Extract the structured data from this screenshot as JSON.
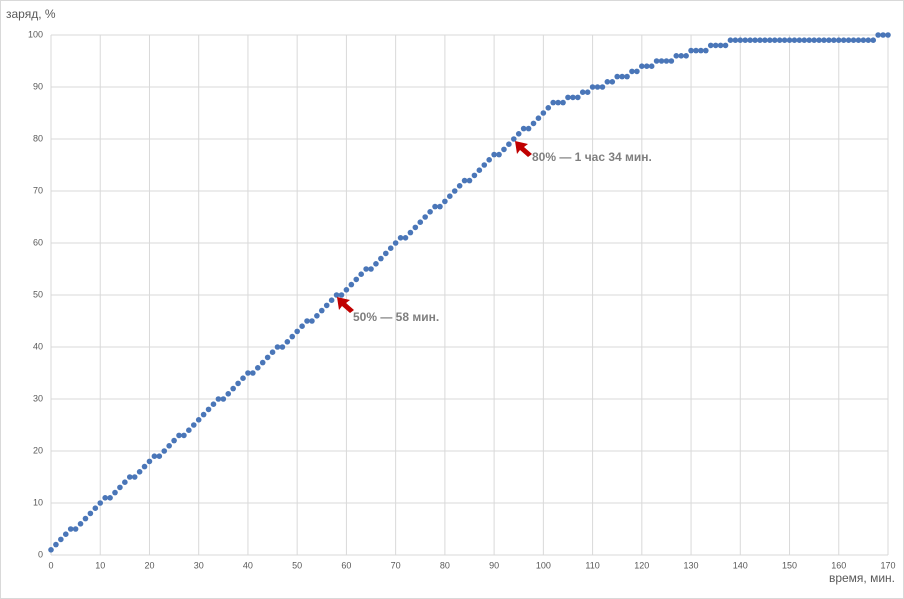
{
  "chart_data": {
    "type": "scatter",
    "y_label": "заряд, %",
    "x_label": "время, мин.",
    "x": [
      0,
      1,
      2,
      3,
      4,
      5,
      6,
      7,
      8,
      9,
      10,
      11,
      12,
      13,
      14,
      15,
      16,
      17,
      18,
      19,
      20,
      21,
      22,
      23,
      24,
      25,
      26,
      27,
      28,
      29,
      30,
      31,
      32,
      33,
      34,
      35,
      36,
      37,
      38,
      39,
      40,
      41,
      42,
      43,
      44,
      45,
      46,
      47,
      48,
      49,
      50,
      51,
      52,
      53,
      54,
      55,
      56,
      57,
      58,
      59,
      60,
      61,
      62,
      63,
      64,
      65,
      66,
      67,
      68,
      69,
      70,
      71,
      72,
      73,
      74,
      75,
      76,
      77,
      78,
      79,
      80,
      81,
      82,
      83,
      84,
      85,
      86,
      87,
      88,
      89,
      90,
      91,
      92,
      93,
      94,
      95,
      96,
      97,
      98,
      99,
      100,
      101,
      102,
      103,
      104,
      105,
      106,
      107,
      108,
      109,
      110,
      111,
      112,
      113,
      114,
      115,
      116,
      117,
      118,
      119,
      120,
      121,
      122,
      123,
      124,
      125,
      126,
      127,
      128,
      129,
      130,
      131,
      132,
      133,
      134,
      135,
      136,
      137,
      138,
      139,
      140,
      141,
      142,
      143,
      144,
      145,
      146,
      147,
      148,
      149,
      150,
      151,
      152,
      153,
      154,
      155,
      156,
      157,
      158,
      159,
      160,
      161,
      162,
      163,
      164,
      165,
      166,
      167,
      168,
      169,
      170
    ],
    "series": [
      {
        "color": "#4a76b8",
        "values": [
          1,
          2,
          3,
          4,
          5,
          5,
          6,
          7,
          8,
          9,
          10,
          11,
          11,
          12,
          13,
          14,
          15,
          15,
          16,
          17,
          18,
          19,
          19,
          20,
          21,
          22,
          23,
          23,
          24,
          25,
          26,
          27,
          28,
          29,
          30,
          30,
          31,
          32,
          33,
          34,
          35,
          35,
          36,
          37,
          38,
          39,
          40,
          40,
          41,
          42,
          43,
          44,
          45,
          45,
          46,
          47,
          48,
          49,
          50,
          50,
          51,
          52,
          53,
          54,
          55,
          55,
          56,
          57,
          58,
          59,
          60,
          61,
          61,
          62,
          63,
          64,
          65,
          66,
          67,
          67,
          68,
          69,
          70,
          71,
          72,
          72,
          73,
          74,
          75,
          76,
          77,
          77,
          78,
          79,
          80,
          81,
          82,
          82,
          83,
          84,
          85,
          86,
          87,
          87,
          87,
          88,
          88,
          88,
          89,
          89,
          90,
          90,
          90,
          91,
          91,
          92,
          92,
          92,
          93,
          93,
          94,
          94,
          94,
          95,
          95,
          95,
          95,
          96,
          96,
          96,
          97,
          97,
          97,
          97,
          98,
          98,
          98,
          98,
          99,
          99,
          99,
          99,
          99,
          99,
          99,
          99,
          99,
          99,
          99,
          99,
          99,
          99,
          99,
          99,
          99,
          99,
          99,
          99,
          99,
          99,
          99,
          99,
          99,
          99,
          99,
          99,
          99,
          99,
          100,
          100,
          100
        ]
      }
    ],
    "xlim": [
      0,
      170
    ],
    "ylim": [
      0,
      100
    ],
    "xticks": [
      0,
      10,
      20,
      30,
      40,
      50,
      60,
      70,
      80,
      90,
      100,
      110,
      120,
      130,
      140,
      150,
      160,
      170
    ],
    "yticks": [
      0,
      10,
      20,
      30,
      40,
      50,
      60,
      70,
      80,
      90,
      100
    ],
    "grid": true,
    "annotations": [
      "50% — 58 мин.",
      "80% — 1 час 34 мин."
    ]
  }
}
